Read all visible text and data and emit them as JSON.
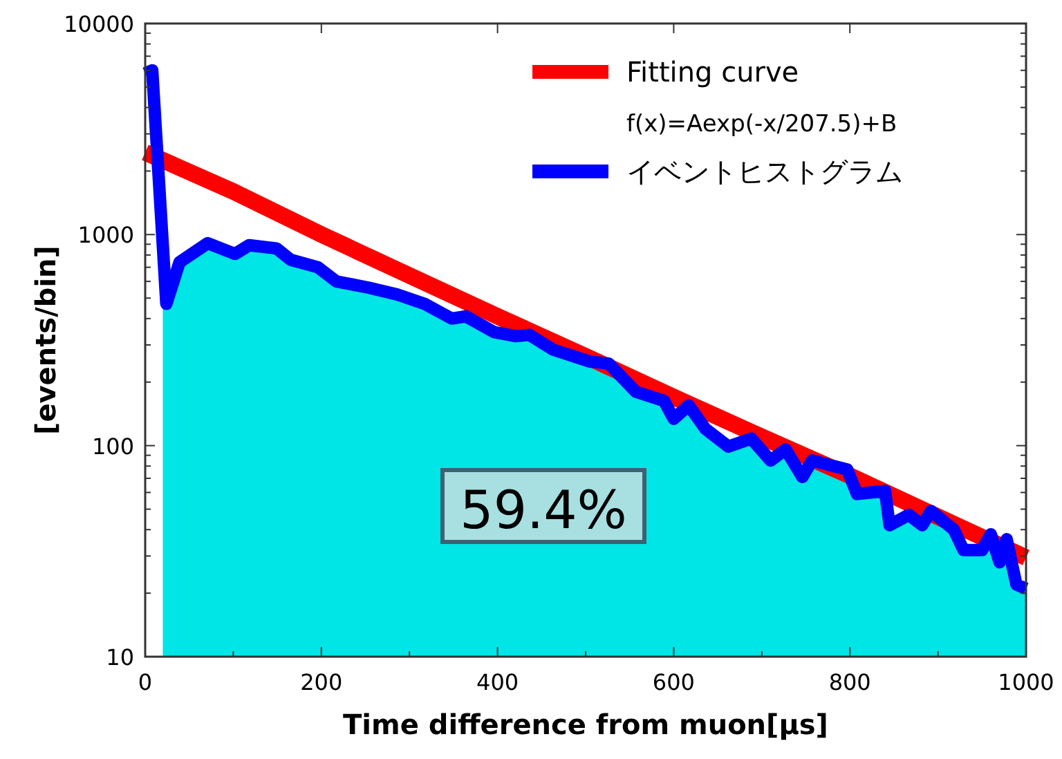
{
  "chart_data": {
    "type": "line",
    "xlabel": "Time difference from muon[μs]",
    "ylabel": "[events/bin]",
    "log": "y",
    "xlim": [
      0,
      1000
    ],
    "xticks": [
      0,
      200,
      400,
      600,
      800,
      1000
    ],
    "ylim": [
      10,
      10000
    ],
    "yticks": [
      10,
      100,
      1000,
      10000
    ],
    "grid": false,
    "legend": "top right",
    "line_style": "solid",
    "marker": "none",
    "annotations": [
      "f(x)=Aexp(-x/207.5)+B",
      "59.4%"
    ],
    "series": [
      {
        "type": "area",
        "color": "#00e5e5",
        "x": [
          20,
          24,
          39,
          71,
          102,
          118,
          149,
          165,
          196,
          217,
          254,
          286,
          317,
          348,
          364,
          396,
          421,
          436,
          463,
          505,
          526,
          557,
          589,
          600,
          617,
          636,
          662,
          688,
          710,
          727,
          746,
          757,
          797,
          808,
          840,
          845,
          867,
          882,
          892,
          918,
          929,
          950,
          960,
          970,
          978,
          989,
          1000
        ],
        "values": [
          470,
          470,
          740,
          910,
          810,
          890,
          860,
          760,
          700,
          600,
          560,
          520,
          470,
          400,
          410,
          345,
          330,
          335,
          285,
          250,
          245,
          180,
          163,
          134,
          155,
          120,
          99,
          108,
          85,
          96,
          71,
          85,
          77,
          59,
          61,
          42,
          47,
          42,
          49,
          40,
          32,
          32,
          38,
          28,
          36,
          22,
          21
        ]
      },
      {
        "name": "Fitting curve",
        "color": "#ff0000",
        "x": [
          0,
          100,
          200,
          300,
          400,
          500,
          600,
          700,
          800,
          900,
          1000
        ],
        "values": [
          2450,
          1600,
          1000,
          640,
          410,
          265,
          170,
          110,
          72,
          46,
          29.5
        ]
      },
      {
        "name": "イベントヒストグラム",
        "color": "#0000ff",
        "x": [
          0,
          8,
          24,
          39,
          71,
          102,
          118,
          149,
          165,
          196,
          217,
          254,
          286,
          317,
          348,
          364,
          396,
          421,
          436,
          463,
          505,
          526,
          557,
          589,
          600,
          617,
          636,
          662,
          688,
          710,
          727,
          746,
          757,
          797,
          808,
          840,
          845,
          867,
          882,
          892,
          918,
          929,
          950,
          960,
          970,
          978,
          989,
          1000
        ],
        "values": [
          5800,
          6000,
          470,
          740,
          910,
          810,
          890,
          860,
          760,
          700,
          600,
          560,
          520,
          470,
          400,
          410,
          345,
          330,
          335,
          285,
          250,
          245,
          180,
          163,
          134,
          155,
          120,
          99,
          108,
          85,
          96,
          71,
          85,
          77,
          59,
          61,
          42,
          47,
          42,
          49,
          40,
          32,
          32,
          38,
          28,
          36,
          22,
          21
        ]
      }
    ]
  }
}
